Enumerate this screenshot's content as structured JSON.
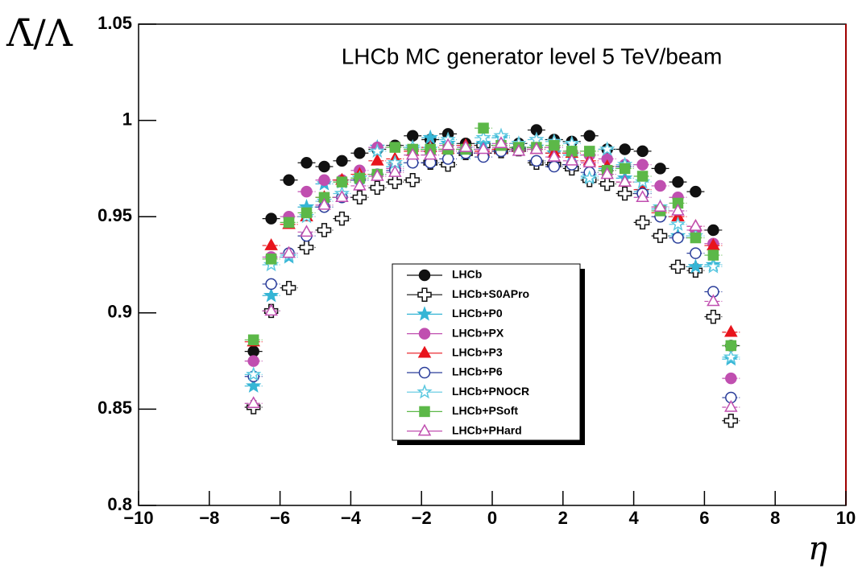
{
  "chart_data": {
    "type": "scatter",
    "title": "LHCb MC generator level 5 TeV/beam",
    "y_label": "Λ̄/Λ",
    "x_label": "η",
    "xlim": [
      -10,
      10
    ],
    "ylim": [
      0.8,
      1.05
    ],
    "xticks": [
      {
        "value": -10,
        "label": "−10"
      },
      {
        "value": -8,
        "label": "−8"
      },
      {
        "value": -6,
        "label": "−6"
      },
      {
        "value": -4,
        "label": "−4"
      },
      {
        "value": -2,
        "label": "−2"
      },
      0,
      2,
      4,
      6,
      8,
      10
    ],
    "yticks": [
      0.8,
      0.85,
      0.9,
      0.95,
      1,
      1.05
    ],
    "legend": "center",
    "xerr": 0.25,
    "x": [
      -6.75,
      -6.25,
      -5.75,
      -5.25,
      -4.75,
      -4.25,
      -3.75,
      -3.25,
      -2.75,
      -2.25,
      -1.75,
      -1.25,
      -0.75,
      -0.25,
      0.25,
      0.75,
      1.25,
      1.75,
      2.25,
      2.75,
      3.25,
      3.75,
      4.25,
      4.75,
      5.25,
      5.75,
      6.25,
      6.75
    ],
    "series": [
      {
        "name": "LHCb",
        "color": "#111111",
        "marker": "circle",
        "filled": true,
        "values": [
          0.88,
          0.949,
          0.969,
          0.978,
          0.976,
          0.979,
          0.983,
          0.985,
          0.987,
          0.992,
          0.99,
          0.993,
          0.988,
          0.983,
          0.985,
          0.988,
          0.995,
          0.99,
          0.989,
          0.992,
          0.985,
          0.985,
          0.984,
          0.975,
          0.968,
          0.963,
          0.943,
          0.883
        ]
      },
      {
        "name": "LHCb+S0APro",
        "color": "#111111",
        "marker": "cross",
        "filled": false,
        "values": [
          0.851,
          0.901,
          0.913,
          0.934,
          0.943,
          0.949,
          0.96,
          0.965,
          0.968,
          0.969,
          0.978,
          0.977,
          0.983,
          0.987,
          0.984,
          0.985,
          0.978,
          0.977,
          0.975,
          0.969,
          0.967,
          0.962,
          0.947,
          0.94,
          0.924,
          0.922,
          0.898,
          0.844
        ]
      },
      {
        "name": "LHCb+P0",
        "color": "#35b5d5",
        "marker": "star",
        "filled": true,
        "values": [
          0.862,
          0.909,
          0.929,
          0.955,
          0.967,
          0.968,
          0.97,
          0.986,
          0.976,
          0.985,
          0.991,
          0.988,
          0.983,
          0.988,
          0.991,
          0.985,
          0.986,
          0.983,
          0.982,
          0.971,
          0.975,
          0.97,
          0.963,
          0.954,
          0.94,
          0.924,
          0.925,
          0.876
        ]
      },
      {
        "name": "LHCb+PX",
        "color": "#c04fb0",
        "marker": "circle",
        "filled": true,
        "values": [
          0.875,
          0.929,
          0.95,
          0.963,
          0.969,
          0.969,
          0.974,
          0.986,
          0.975,
          0.985,
          0.984,
          0.984,
          0.983,
          0.983,
          0.986,
          0.985,
          0.986,
          0.986,
          0.984,
          0.982,
          0.98,
          0.977,
          0.977,
          0.966,
          0.96,
          0.943,
          0.936,
          0.866
        ]
      },
      {
        "name": "LHCb+P3",
        "color": "#e8141c",
        "marker": "triangle",
        "filled": true,
        "values": [
          0.885,
          0.935,
          0.946,
          0.95,
          0.96,
          0.969,
          0.972,
          0.979,
          0.98,
          0.984,
          0.986,
          0.985,
          0.987,
          0.984,
          0.985,
          0.986,
          0.985,
          0.983,
          0.983,
          0.979,
          0.976,
          0.968,
          0.964,
          0.952,
          0.95,
          0.945,
          0.935,
          0.89
        ]
      },
      {
        "name": "LHCb+P6",
        "color": "#2a3d9a",
        "marker": "circle",
        "filled": false,
        "values": [
          0.867,
          0.915,
          0.931,
          0.94,
          0.955,
          0.96,
          0.969,
          0.972,
          0.974,
          0.978,
          0.978,
          0.98,
          0.983,
          0.981,
          0.984,
          0.986,
          0.979,
          0.976,
          0.977,
          0.973,
          0.974,
          0.976,
          0.962,
          0.95,
          0.939,
          0.931,
          0.911,
          0.856
        ]
      },
      {
        "name": "LHCb+PNOCR",
        "color": "#5cc8e0",
        "marker": "star",
        "filled": false,
        "values": [
          0.868,
          0.925,
          0.93,
          0.95,
          0.958,
          0.962,
          0.97,
          0.984,
          0.978,
          0.986,
          0.985,
          0.99,
          0.985,
          0.991,
          0.992,
          0.988,
          0.99,
          0.989,
          0.988,
          0.97,
          0.985,
          0.977,
          0.968,
          0.955,
          0.946,
          0.94,
          0.924,
          0.877
        ]
      },
      {
        "name": "LHCb+PSoft",
        "color": "#5cb848",
        "marker": "square",
        "filled": true,
        "values": [
          0.886,
          0.928,
          0.947,
          0.952,
          0.96,
          0.968,
          0.97,
          0.972,
          0.986,
          0.985,
          0.985,
          0.985,
          0.985,
          0.996,
          0.987,
          0.986,
          0.986,
          0.987,
          0.984,
          0.984,
          0.974,
          0.975,
          0.971,
          0.953,
          0.957,
          0.939,
          0.93,
          0.883
        ]
      },
      {
        "name": "LHCb+PHard",
        "color": "#c04fb0",
        "marker": "triangle",
        "filled": false,
        "values": [
          0.853,
          0.901,
          0.931,
          0.942,
          0.956,
          0.96,
          0.966,
          0.971,
          0.973,
          0.982,
          0.982,
          0.987,
          0.986,
          0.985,
          0.988,
          0.984,
          0.985,
          0.981,
          0.979,
          0.978,
          0.972,
          0.968,
          0.96,
          0.955,
          0.953,
          0.945,
          0.906,
          0.851
        ]
      }
    ]
  }
}
